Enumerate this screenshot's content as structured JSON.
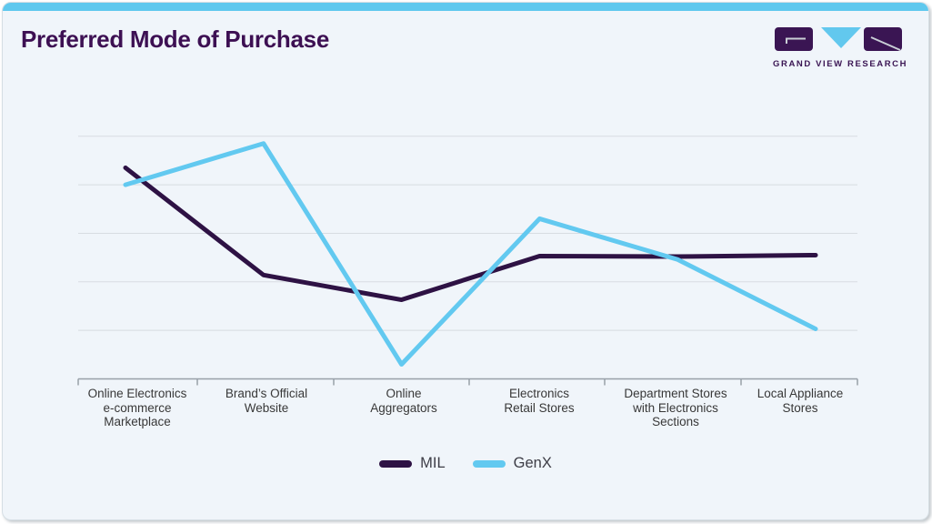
{
  "header": {
    "title": "Preferred Mode of Purchase",
    "logo_text": "GRAND VIEW RESEARCH"
  },
  "chart_data": {
    "type": "line",
    "title": "Preferred Mode of Purchase",
    "categories": [
      "Online Electronics e-commerce Marketplace",
      "Brand’s Official Website",
      "Online Aggregators",
      "Electronics Retail Stores",
      "Department Stores with Electronics Sections",
      "Local Appliance Stores"
    ],
    "series": [
      {
        "name": "MIL",
        "color": "#2e1244",
        "values": [
          43.5,
          21.4,
          16.3,
          25.3,
          25.2,
          25.5
        ]
      },
      {
        "name": "GenX",
        "color": "#62c9f0",
        "values": [
          40.0,
          48.5,
          3.0,
          33.0,
          24.6,
          10.3
        ]
      }
    ],
    "xlabel": "",
    "ylabel": "",
    "ylim": [
      0,
      55
    ],
    "gridline_values": [
      10,
      20,
      30,
      40,
      50
    ],
    "y_tick_labels_visible": false,
    "grid": true,
    "legend_position": "bottom"
  },
  "xaxis": {
    "labels": [
      "Online Electronics\ne-commerce\nMarketplace",
      "Brand’s Official\nWebsite",
      "Online\nAggregators",
      "Electronics\nRetail Stores",
      "Department Stores\nwith Electronics\nSections",
      "Local Appliance\nStores"
    ]
  },
  "legend": {
    "items": [
      {
        "label": "MIL",
        "color": "#2e1244"
      },
      {
        "label": "GenX",
        "color": "#62c9f0"
      }
    ]
  },
  "colors": {
    "topbar": "#5fc8ee",
    "title": "#3d1053",
    "card_bg": "#f0f5fa",
    "grid": "#d7dce1",
    "axis": "#98a0a8",
    "logo_purple": "#3a1553",
    "logo_blue": "#62c8ee",
    "logo_mark_gray": "#c9ced6"
  }
}
